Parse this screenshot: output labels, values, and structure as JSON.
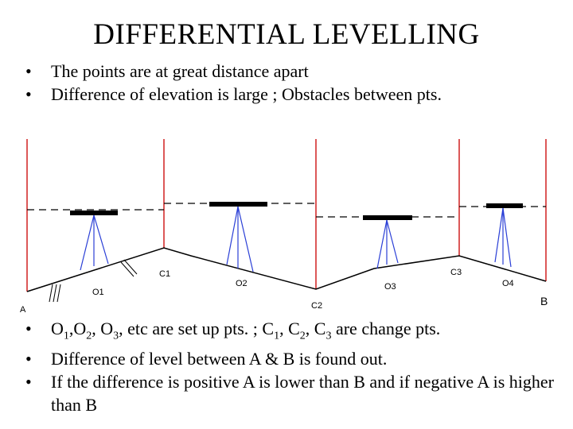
{
  "title": "DIFFERENTIAL LEVELLING",
  "intro_bullets": [
    "The points are at great distance apart",
    "Difference of elevation is large ; Obstacles between pts."
  ],
  "diagram": {
    "labels": {
      "A": "A",
      "B": "B",
      "O1": "O1",
      "O2": "O2",
      "O3": "O3",
      "O4": "O4",
      "C1": "C1",
      "C2": "C2",
      "C3": "C3"
    }
  },
  "notes": {
    "setup_prefix": "O",
    "setup_sep": ",",
    "setup_comma": ", ",
    "setup_etc": ", etc are set up pts. ; ",
    "change_prefix": "C",
    "change_comma": ", ",
    "change_suffix": " are change pts.",
    "n1": "1",
    "n2": "2",
    "n3": "3",
    "line2": "Difference of level between A & B is found out.",
    "line3": "If the difference is positive A is lower than B and if negative A is higher than B"
  }
}
